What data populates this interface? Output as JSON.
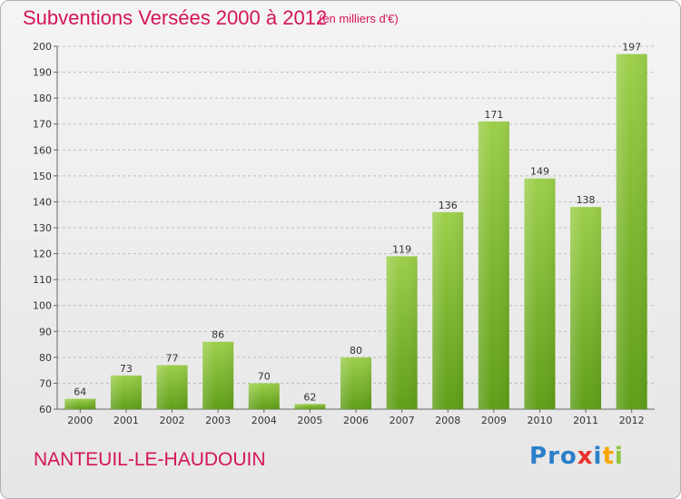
{
  "header": {
    "title": "Subventions Versées 2000 à 2012",
    "subtitle": "(en milliers d'€)"
  },
  "footer": {
    "commune": "NANTEUIL-LE-HAUDOUIN",
    "logo": "Proxiti",
    "logo_letters": [
      {
        "char": "P",
        "color": "#2a7fc9"
      },
      {
        "char": "r",
        "color": "#2a7fc9"
      },
      {
        "char": "o",
        "color": "#2a7fc9"
      },
      {
        "char": "x",
        "color": "#e8322b"
      },
      {
        "char": "i",
        "color": "#2a7fc9"
      },
      {
        "char": "t",
        "color": "#f7a600"
      },
      {
        "char": "i",
        "color": "#8cc63f"
      }
    ]
  },
  "colors": {
    "accent": "#d4145a",
    "bar_top": "#9ccf4b",
    "bar_bottom": "#5f9e18",
    "grid": "#bdbdbd"
  },
  "chart_data": {
    "type": "bar",
    "title": "Subventions Versées 2000 à 2012",
    "subtitle": "(en milliers d'€)",
    "categories": [
      "2000",
      "2001",
      "2002",
      "2003",
      "2004",
      "2005",
      "2006",
      "2007",
      "2008",
      "2009",
      "2010",
      "2011",
      "2012"
    ],
    "values": [
      64,
      73,
      77,
      86,
      70,
      62,
      80,
      119,
      136,
      171,
      149,
      138,
      197
    ],
    "ylim": [
      60,
      200
    ],
    "yticks": [
      60,
      70,
      80,
      90,
      100,
      110,
      120,
      130,
      140,
      150,
      160,
      170,
      180,
      190,
      200
    ],
    "grid": "horizontal-dashed",
    "data_labels": true
  }
}
